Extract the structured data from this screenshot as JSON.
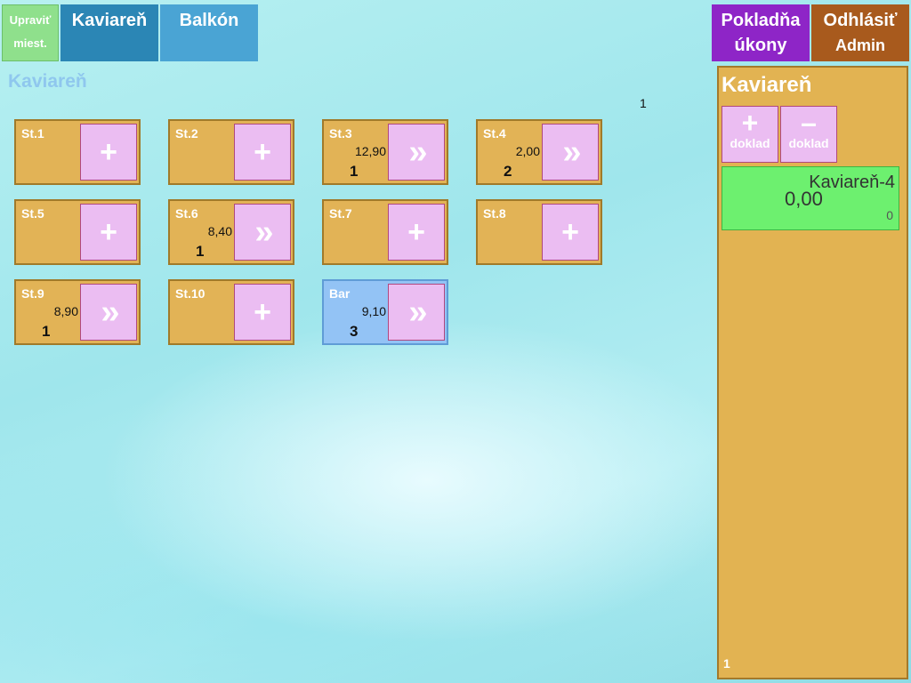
{
  "header": {
    "edit_label_1": "Upraviť",
    "edit_label_2": "miest.",
    "tabs": [
      {
        "label": "Kaviareň"
      },
      {
        "label": "Balkón"
      }
    ],
    "cash_label_1": "Pokladňa",
    "cash_label_2": "úkony",
    "logout_label_1": "Odhlásiť",
    "logout_label_2": "Admin"
  },
  "room": {
    "title": "Kaviareň",
    "page": "1"
  },
  "tables": [
    {
      "name": "St.1",
      "amount": "",
      "count": "",
      "action": "+"
    },
    {
      "name": "St.2",
      "amount": "",
      "count": "",
      "action": "+"
    },
    {
      "name": "St.3",
      "amount": "12,90",
      "count": "1",
      "action": "»"
    },
    {
      "name": "St.4",
      "amount": "2,00",
      "count": "2",
      "action": "»"
    },
    {
      "name": "St.5",
      "amount": "",
      "count": "",
      "action": "+"
    },
    {
      "name": "St.6",
      "amount": "8,40",
      "count": "1",
      "action": "»"
    },
    {
      "name": "St.7",
      "amount": "",
      "count": "",
      "action": "+"
    },
    {
      "name": "St.8",
      "amount": "",
      "count": "",
      "action": "+"
    },
    {
      "name": "St.9",
      "amount": "8,90",
      "count": "1",
      "action": "»"
    },
    {
      "name": "St.10",
      "amount": "",
      "count": "",
      "action": "+"
    },
    {
      "name": "Bar",
      "amount": "9,10",
      "count": "3",
      "action": "»"
    }
  ],
  "panel": {
    "title": "Kaviareň",
    "add_symbol": "+",
    "add_label": "doklad",
    "remove_symbol": "–",
    "remove_label": "doklad",
    "receipt": {
      "name": "Kaviareň-4",
      "amount": "0,00",
      "count": "0"
    },
    "page": "1"
  },
  "colors": {
    "table_bg": "#e2b356",
    "bar_bg": "#93c3f5",
    "action_bg": "#ebbdf2",
    "receipt_bg": "#6df06f",
    "cash_bg": "#8e25c7",
    "logout_bg": "#a85a1d"
  }
}
